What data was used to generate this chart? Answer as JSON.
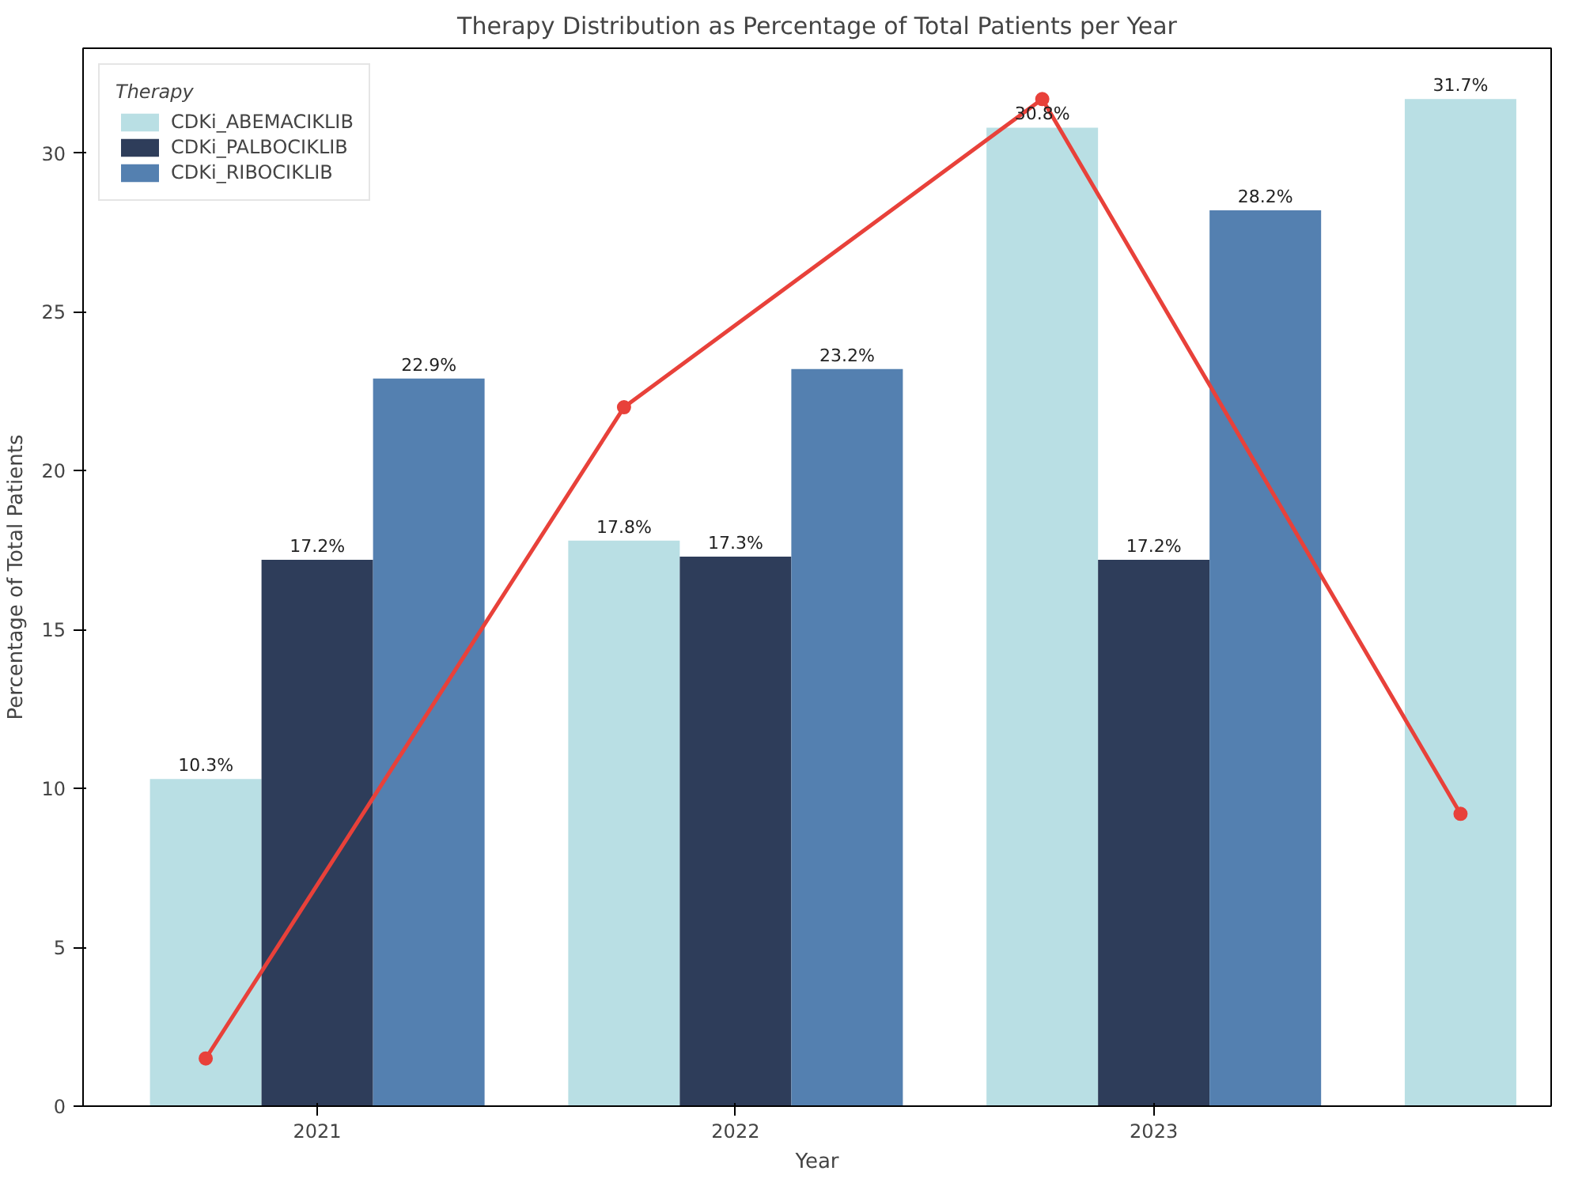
{
  "chart_data": {
    "type": "bar",
    "title": "Therapy Distribution as Percentage of Total Patients per Year",
    "xlabel": "Year",
    "ylabel": "Percentage of Total Patients",
    "legend_title": "Therapy",
    "legend": "top left",
    "grid": false,
    "categories": [
      "2021",
      "2022",
      "2023",
      null
    ],
    "ylim": [
      0,
      33.3
    ],
    "yticks": [
      0,
      5,
      10,
      15,
      20,
      25,
      30
    ],
    "series": [
      {
        "name": "CDKi_ABEMACIKLIB",
        "color": "#b9dfe4",
        "values": [
          10.3,
          17.8,
          30.8,
          31.7
        ],
        "value_labels": [
          "10.3%",
          "17.8%",
          "30.8%",
          "31.7%"
        ]
      },
      {
        "name": "CDKi_PALBOCIKLIB",
        "color": "#2e3d5a",
        "values": [
          17.2,
          17.3,
          17.2,
          null
        ],
        "value_labels": [
          "17.2%",
          "17.3%",
          "17.2%",
          null
        ]
      },
      {
        "name": "CDKi_RIBOCIKLIB",
        "color": "#5480b0",
        "values": [
          22.9,
          23.2,
          28.2,
          null
        ],
        "value_labels": [
          "22.9%",
          "23.2%",
          "28.2%",
          null
        ]
      },
      {
        "type": "line",
        "color": "#e8413a",
        "values": [
          1.5,
          22.0,
          31.7,
          9.2
        ],
        "marker": "circle"
      }
    ]
  }
}
